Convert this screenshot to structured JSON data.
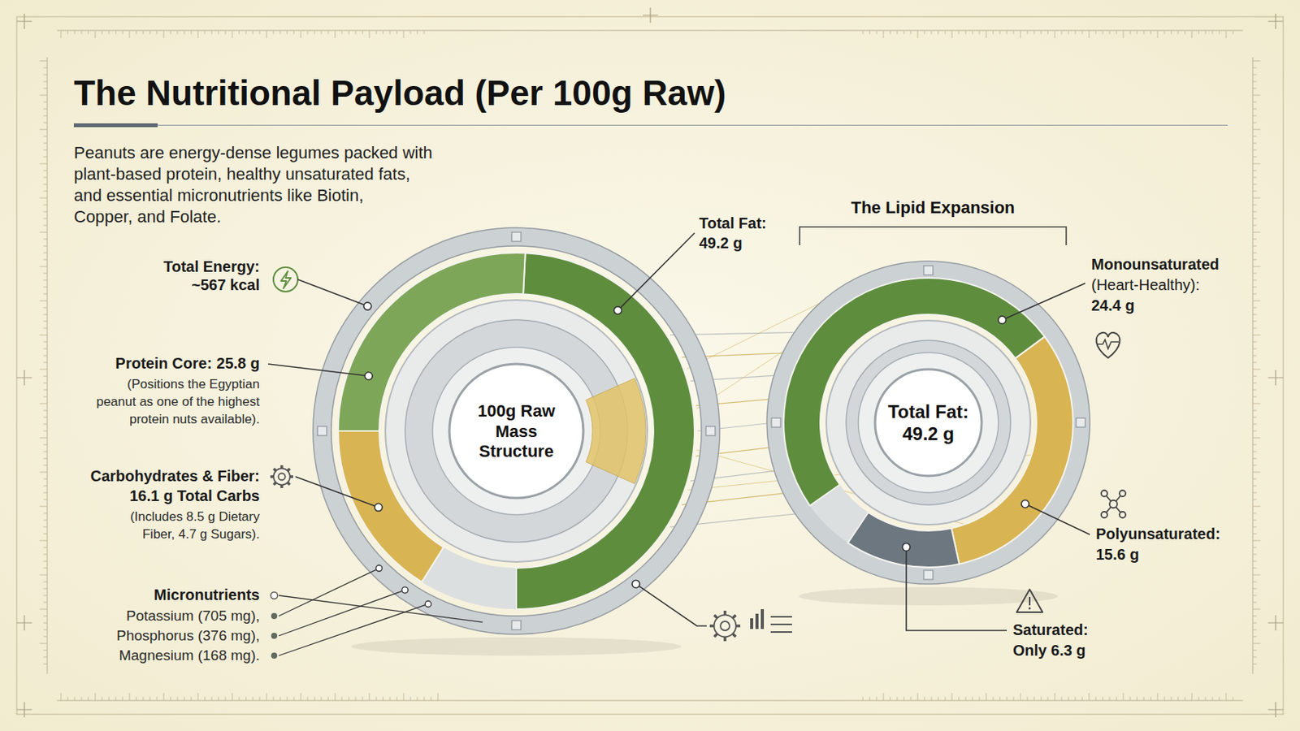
{
  "header": {
    "title": "The Nutritional Payload (Per 100g Raw)",
    "text": "Peanuts are energy-dense legumes packed with\nplant-based protein, healthy unsaturated fats,\nand essential micronutrients like Biotin,\nCopper, and Folate."
  },
  "chart_data": [
    {
      "type": "donut",
      "center_label": "100g Raw\nMass\nStructure",
      "categories": [
        "Total Fat:",
        "Protein Core:",
        "Carbohydrates & Fiber:"
      ],
      "values": [
        49.2,
        25.8,
        16.1
      ],
      "value_labels": [
        "49.2 g",
        "25.8 g",
        "16.1 g Total Carbs"
      ],
      "colors": [
        "#5f8d3e",
        "#7ea658",
        "#d9b453"
      ],
      "ylim": [
        0,
        100
      ],
      "tick_labels": false,
      "annotations": [
        {
          "label": "Total Energy:",
          "text": "~567 kcal"
        },
        {
          "text": "(Positions the Egyptian\npeanut as one of the highest\nprotein nuts available)."
        },
        {
          "text": "(Includes 8.5 g Dietary\nFiber, 4.7 g Sugars)."
        },
        {
          "label": "Micronutrients",
          "items": [
            "Potassium (705 mg),",
            "Phosphorus (376 mg),",
            "Magnesium (168 mg)."
          ]
        }
      ]
    },
    {
      "type": "donut",
      "title": "The Lipid Expansion",
      "center_label": "Total Fat:\n49.2 g",
      "categories": [
        "Monounsaturated\n(Heart-Healthy):",
        "Polyunsaturated:",
        "Saturated:"
      ],
      "values": [
        24.4,
        15.6,
        6.3
      ],
      "value_labels": [
        "24.4 g",
        "15.6 g",
        "Only 6.3 g"
      ],
      "colors": [
        "#5f8d3e",
        "#d9b453",
        "#6d777f"
      ],
      "ylim": [
        0,
        49.2
      ],
      "tick_labels": false
    }
  ]
}
